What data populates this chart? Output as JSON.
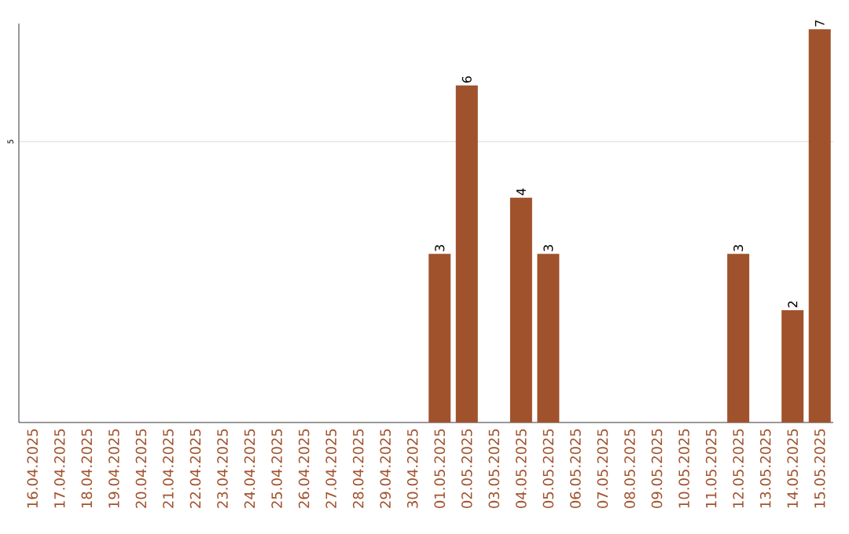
{
  "chart_data": {
    "type": "bar",
    "categories": [
      "16.04.2025",
      "17.04.2025",
      "18.04.2025",
      "19.04.2025",
      "20.04.2025",
      "21.04.2025",
      "22.04.2025",
      "23.04.2025",
      "24.04.2025",
      "25.04.2025",
      "26.04.2025",
      "27.04.2025",
      "28.04.2025",
      "29.04.2025",
      "30.04.2025",
      "01.05.2025",
      "02.05.2025",
      "03.05.2025",
      "04.05.2025",
      "05.05.2025",
      "06.05.2025",
      "07.05.2025",
      "08.05.2025",
      "09.05.2025",
      "10.05.2025",
      "11.05.2025",
      "12.05.2025",
      "13.05.2025",
      "14.05.2025",
      "15.05.2025"
    ],
    "values": [
      null,
      null,
      null,
      null,
      null,
      null,
      null,
      null,
      null,
      null,
      null,
      null,
      null,
      null,
      null,
      3,
      6,
      null,
      4,
      3,
      null,
      null,
      null,
      null,
      null,
      null,
      3,
      null,
      2,
      7
    ],
    "value_labels": [
      null,
      null,
      null,
      null,
      null,
      null,
      null,
      null,
      null,
      null,
      null,
      null,
      null,
      null,
      null,
      "3",
      "6",
      null,
      "4",
      "3",
      null,
      null,
      null,
      null,
      null,
      null,
      "3",
      null,
      "2",
      "7"
    ],
    "color": "#a0522d",
    "ylim": [
      0,
      7.1
    ],
    "yticks": [
      5
    ],
    "grid": "y"
  }
}
